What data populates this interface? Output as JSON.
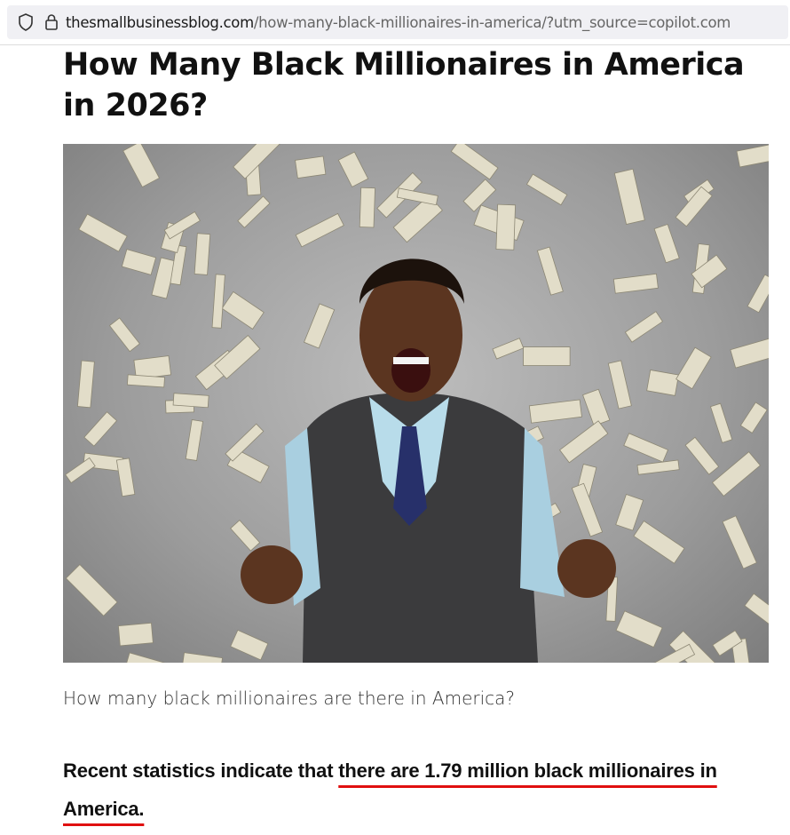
{
  "browser": {
    "url_host": "thesmallbusinessblog.com",
    "url_path": "/how-many-black-millionaires-in-america/?utm_source=copilot.com",
    "icons": [
      "shield-icon",
      "lock-icon"
    ]
  },
  "article": {
    "title": "How Many Black Millionaires in America in 2026?",
    "hero_image": {
      "description_icon": "man-celebrating-with-falling-money-photo",
      "background_color": "#a8a8a8"
    },
    "caption": "How many black millionaires are there in America?",
    "lead_plain": "Recent statistics indicate that ",
    "lead_highlighted": "there are 1.79 million black millionaires in America.",
    "highlight_color": "#e01010"
  }
}
